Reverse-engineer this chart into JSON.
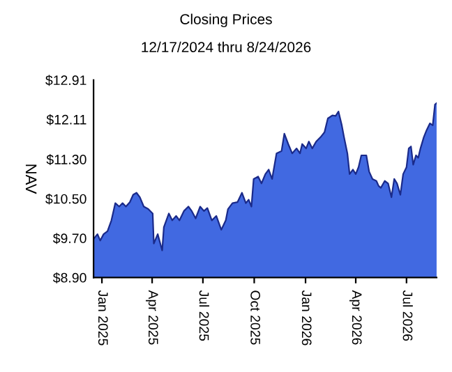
{
  "chart_data": {
    "type": "area",
    "title": "Closing Prices",
    "subtitle": "12/17/2024 thru 8/24/2026",
    "ylabel": "NAV",
    "x": [
      "2024-12-17",
      "2024-12-24",
      "2024-12-29",
      "2025-01-04",
      "2025-01-11",
      "2025-01-18",
      "2025-01-25",
      "2025-02-01",
      "2025-02-07",
      "2025-02-13",
      "2025-02-20",
      "2025-02-26",
      "2025-03-04",
      "2025-03-10",
      "2025-03-17",
      "2025-03-25",
      "2025-04-02",
      "2025-04-04",
      "2025-04-11",
      "2025-04-19",
      "2025-04-22",
      "2025-05-01",
      "2025-05-07",
      "2025-05-14",
      "2025-05-20",
      "2025-05-28",
      "2025-06-05",
      "2025-06-11",
      "2025-06-18",
      "2025-06-26",
      "2025-07-03",
      "2025-07-09",
      "2025-07-17",
      "2025-07-25",
      "2025-08-03",
      "2025-08-11",
      "2025-08-15",
      "2025-08-23",
      "2025-09-01",
      "2025-09-09",
      "2025-09-16",
      "2025-09-21",
      "2025-09-26",
      "2025-09-30",
      "2025-10-08",
      "2025-10-14",
      "2025-10-21",
      "2025-10-27",
      "2025-11-02",
      "2025-11-10",
      "2025-11-19",
      "2025-11-24",
      "2025-12-01",
      "2025-12-08",
      "2025-12-16",
      "2025-12-22",
      "2025-12-26",
      "2026-01-02",
      "2026-01-07",
      "2026-01-13",
      "2026-01-20",
      "2026-01-28",
      "2026-02-04",
      "2026-02-10",
      "2026-02-18",
      "2026-02-24",
      "2026-03-01",
      "2026-03-07",
      "2026-03-11",
      "2026-03-17",
      "2026-03-21",
      "2026-03-27",
      "2026-04-01",
      "2026-04-06",
      "2026-04-11",
      "2026-04-20",
      "2026-04-25",
      "2026-05-01",
      "2026-05-08",
      "2026-05-12",
      "2026-05-16",
      "2026-05-23",
      "2026-05-29",
      "2026-06-04",
      "2026-06-09",
      "2026-06-14",
      "2026-06-20",
      "2026-06-25",
      "2026-07-01",
      "2026-07-05",
      "2026-07-09",
      "2026-07-13",
      "2026-07-18",
      "2026-07-22",
      "2026-07-26",
      "2026-08-01",
      "2026-08-06",
      "2026-08-12",
      "2026-08-17",
      "2026-08-21",
      "2026-08-24"
    ],
    "series": [
      {
        "color": "#4169e1",
        "values": [
          9.68,
          9.78,
          9.65,
          9.78,
          9.84,
          10.06,
          10.41,
          10.34,
          10.41,
          10.34,
          10.43,
          10.58,
          10.62,
          10.53,
          10.34,
          10.29,
          10.2,
          9.59,
          9.78,
          9.45,
          9.92,
          10.2,
          10.06,
          10.15,
          10.06,
          10.25,
          10.34,
          10.25,
          10.1,
          10.34,
          10.25,
          10.31,
          10.06,
          10.15,
          9.87,
          10.06,
          10.29,
          10.41,
          10.43,
          10.62,
          10.41,
          10.48,
          10.34,
          10.9,
          10.95,
          10.81,
          11.0,
          11.09,
          10.9,
          11.42,
          11.47,
          11.82,
          11.61,
          11.42,
          11.52,
          11.42,
          11.61,
          11.52,
          11.66,
          11.52,
          11.66,
          11.75,
          11.85,
          12.13,
          12.19,
          12.18,
          12.27,
          11.99,
          11.75,
          11.42,
          11.0,
          11.09,
          11.0,
          11.14,
          11.38,
          11.38,
          11.05,
          10.9,
          10.86,
          10.76,
          10.72,
          10.86,
          10.81,
          10.53,
          10.9,
          10.81,
          10.58,
          11.0,
          11.14,
          11.52,
          11.56,
          11.19,
          11.38,
          11.33,
          11.52,
          11.75,
          11.89,
          12.03,
          11.99,
          12.41,
          12.44
        ]
      }
    ],
    "xlim": [
      "2024-12-17",
      "2026-08-24"
    ],
    "xticks": [
      {
        "value": "2025-01-01",
        "label": "Jan 2025"
      },
      {
        "value": "2025-04-01",
        "label": "Apr 2025"
      },
      {
        "value": "2025-07-01",
        "label": "Jul 2025"
      },
      {
        "value": "2025-10-01",
        "label": "Oct 2025"
      },
      {
        "value": "2026-01-01",
        "label": "Jan 2026"
      },
      {
        "value": "2026-04-01",
        "label": "Apr 2026"
      },
      {
        "value": "2026-07-01",
        "label": "Jul 2026"
      }
    ],
    "ylim": [
      8.9,
      12.91
    ],
    "yticks": [
      {
        "value": 8.9,
        "label": "$8.90"
      },
      {
        "value": 9.7,
        "label": "$9.70"
      },
      {
        "value": 10.5,
        "label": "$10.50"
      },
      {
        "value": 11.3,
        "label": "$11.30"
      },
      {
        "value": 12.11,
        "label": "$12.11"
      },
      {
        "value": 12.91,
        "label": "$12.91"
      }
    ]
  }
}
